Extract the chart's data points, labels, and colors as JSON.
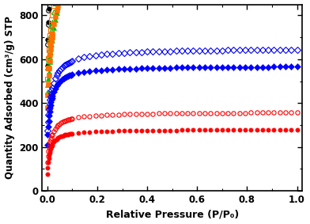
{
  "xlabel": "Relative Pressure (P/P₀)",
  "ylabel": "Quantity Adsorbed (cm³/g) STP",
  "xlim": [
    -0.02,
    1.02
  ],
  "ylim": [
    0,
    850
  ],
  "yticks": [
    0,
    200,
    400,
    600,
    800
  ],
  "xticks": [
    0.0,
    0.2,
    0.4,
    0.6,
    0.8,
    1.0
  ],
  "materials": [
    {
      "color": "black",
      "marker_ads": "o",
      "marker_des": "o",
      "Qmax_ads": 660,
      "c_ads": 120,
      "Qmax_des": 710,
      "c_des": 80,
      "q0_ads": 570,
      "q0_des": 615,
      "ms": 4.0
    },
    {
      "color": "#00bb00",
      "marker_ads": "^",
      "marker_des": "^",
      "Qmax_ads": 750,
      "c_ads": 25,
      "Qmax_des": 950,
      "c_des": 15,
      "q0_ads": 450,
      "q0_des": 550,
      "ms": 4.5
    },
    {
      "color": "#ff7000",
      "marker_ads": "s",
      "marker_des": "s",
      "Qmax_ads": 680,
      "c_ads": 50,
      "Qmax_des": 720,
      "c_des": 40,
      "q0_ads": 380,
      "q0_des": 480,
      "ms": 4.0
    },
    {
      "color": "#0000ff",
      "marker_ads": "D",
      "marker_des": "D",
      "Qmax_ads": 360,
      "c_ads": 80,
      "Qmax_des": 400,
      "c_des": 60,
      "q0_ads": 210,
      "q0_des": 250,
      "ms": 4.0
    },
    {
      "color": "#ff0000",
      "marker_ads": "o",
      "marker_des": "o",
      "Qmax_ads": 205,
      "c_ads": 100,
      "Qmax_des": 245,
      "c_des": 70,
      "q0_ads": 75,
      "q0_des": 115,
      "ms": 3.8
    }
  ],
  "background_color": "#ffffff"
}
